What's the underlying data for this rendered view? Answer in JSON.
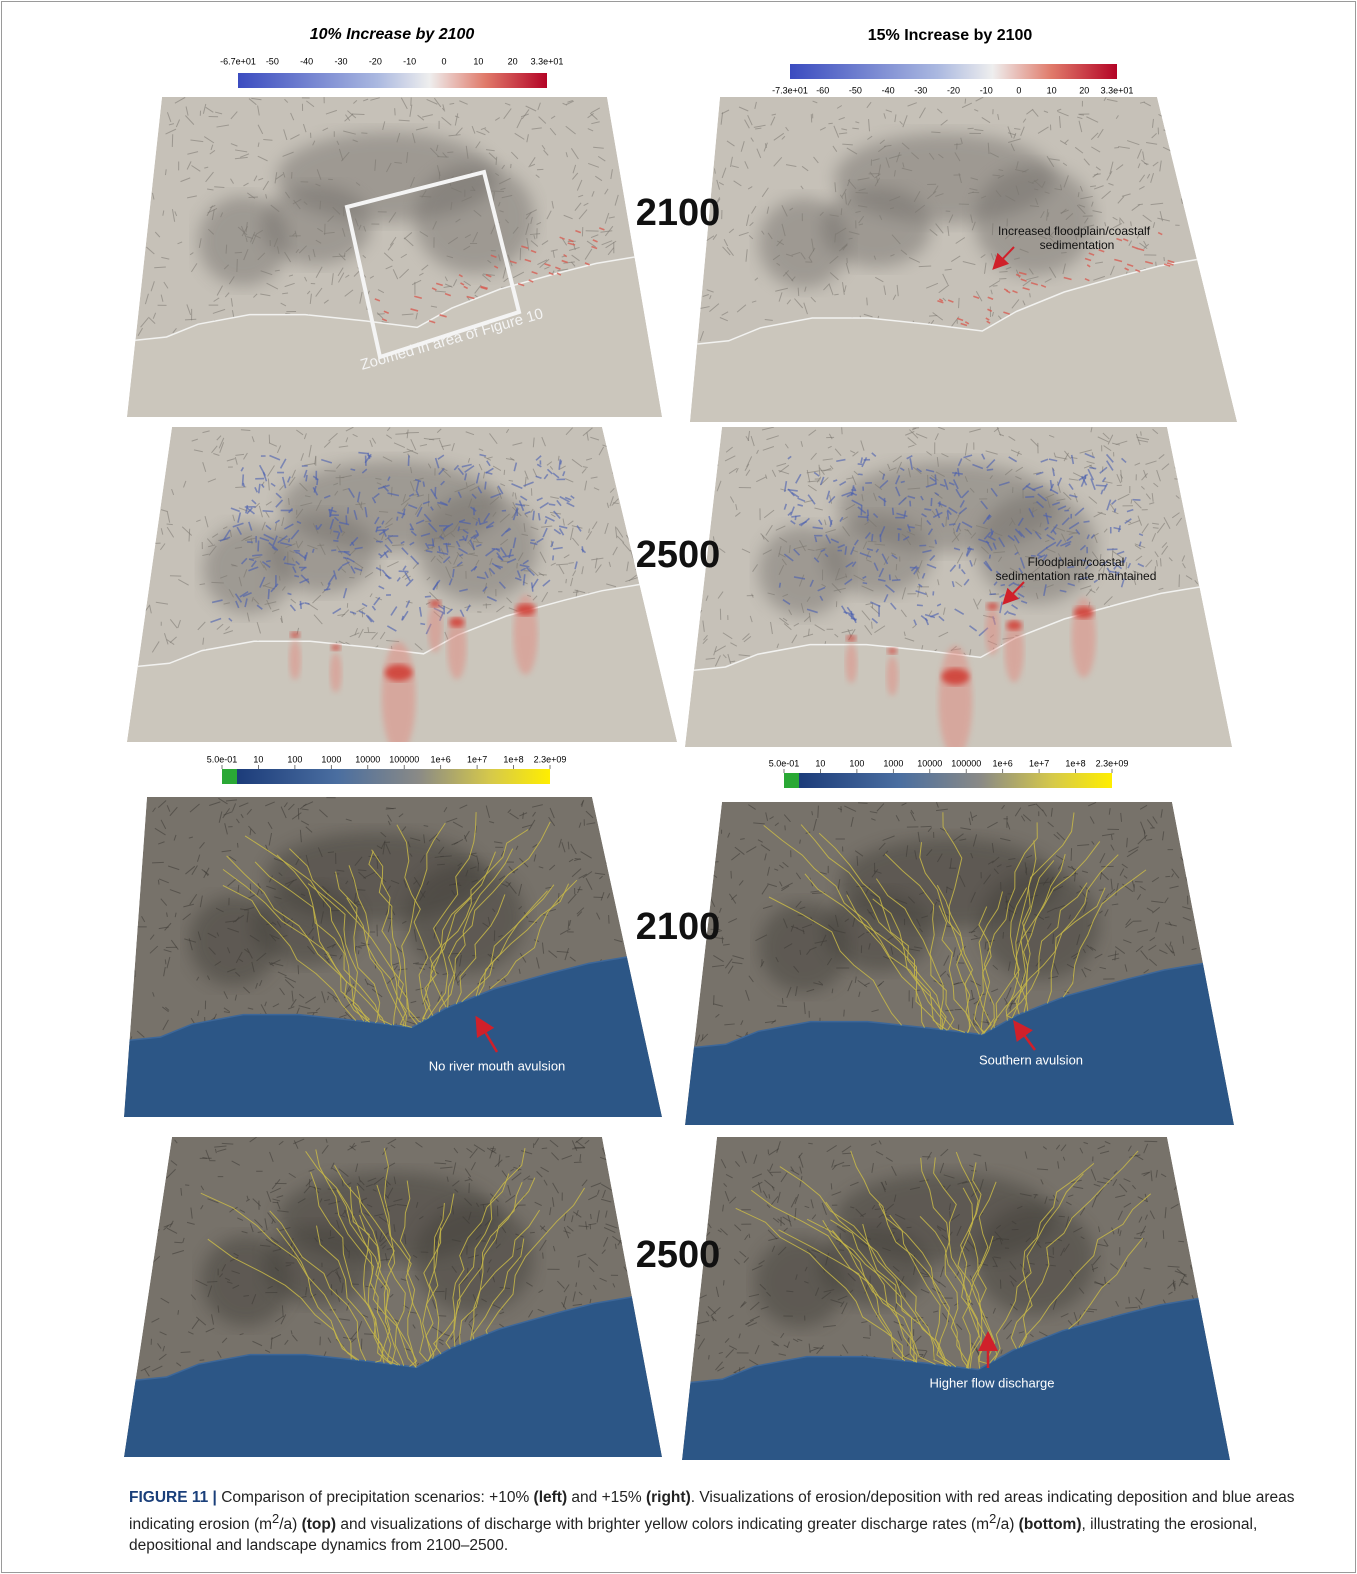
{
  "panels": {
    "left_title": "10% Increase by 2100",
    "right_title": "15% Increase by 2100"
  },
  "colorbars": {
    "erosion_left": [
      "-6.7e+01",
      "-50",
      "-40",
      "-30",
      "-20",
      "-10",
      "0",
      "10",
      "20",
      "3.3e+01"
    ],
    "erosion_right": [
      "-7.3e+01",
      "-60",
      "-50",
      "-40",
      "-30",
      "-20",
      "-10",
      "0",
      "10",
      "20",
      "3.3e+01"
    ],
    "discharge_left": [
      "5.0e-01",
      "10",
      "100",
      "1000",
      "10000",
      "100000",
      "1e+6",
      "1e+7",
      "1e+8",
      "2.3e+09"
    ],
    "discharge_right": [
      "5.0e-01",
      "10",
      "100",
      "1000",
      "10000",
      "100000",
      "1e+6",
      "1e+7",
      "1e+8",
      "2.3e+09"
    ]
  },
  "years": [
    "2100",
    "2500",
    "2100",
    "2500"
  ],
  "annotations": {
    "zoom": "Zoomed in area of Figure 10",
    "increased": [
      "Increased floodplain/coastalf",
      "sedimentation"
    ],
    "maintained": [
      "Floodplain/coastal",
      "sedimentation rate maintained"
    ],
    "no_avulsion": "No river mouth avulsion",
    "southern": "Southern avulsion",
    "higher": "Higher flow discharge"
  },
  "caption": {
    "label": "FIGURE 11 |",
    "parts": [
      " Comparison of precipitation scenarios: +10% ",
      "(left)",
      " and +15% ",
      "(right)",
      ". Visualizations of erosion/deposition with red areas indicating deposition and blue areas indicating erosion (m",
      "2",
      "/a) ",
      "(top)",
      " and visualizations of discharge with brighter yellow colors indicating greater discharge rates (m",
      "2",
      "/a) ",
      "(bottom)",
      ", illustrating the erosional, depositional and landscape dynamics from 2100–2500."
    ]
  }
}
